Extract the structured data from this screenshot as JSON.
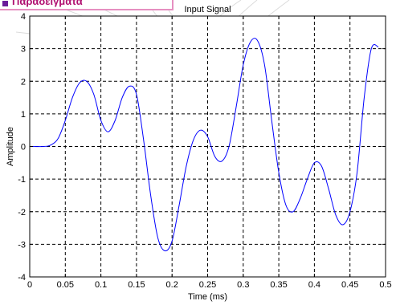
{
  "header": {
    "banner_text": "Παραδείγματα"
  },
  "colors": {
    "banner_text": "#b01070",
    "banner_border": "#e68fc1",
    "bullet": "#6a1b9a",
    "series": "#0000ff",
    "grid": "#000000"
  },
  "chart_data": {
    "type": "line",
    "title": "Input Signal",
    "xlabel": "Time (ms)",
    "ylabel": "Amplitude",
    "xlim": [
      0,
      0.5
    ],
    "ylim": [
      -4,
      4
    ],
    "grid": true,
    "grid_style": "dashed",
    "xticks": [
      0,
      0.05,
      0.1,
      0.15,
      0.2,
      0.25,
      0.3,
      0.35,
      0.4,
      0.45,
      0.5
    ],
    "xtick_labels": [
      "0",
      "0.05",
      "0.1",
      "0.15",
      "0.2",
      "0.25",
      "0.3",
      "0.35",
      "0.4",
      "0.45",
      "0.5"
    ],
    "yticks": [
      -4,
      -3,
      -2,
      -1,
      0,
      1,
      2,
      3,
      4
    ],
    "ytick_labels": [
      "-4",
      "-3",
      "-2",
      "-1",
      "0",
      "1",
      "2",
      "3",
      "4"
    ],
    "series": [
      {
        "x": [
          0,
          0.02,
          0.03,
          0.04,
          0.05,
          0.06,
          0.07,
          0.08,
          0.09,
          0.1,
          0.11,
          0.12,
          0.13,
          0.14,
          0.15,
          0.16,
          0.17,
          0.18,
          0.19,
          0.2,
          0.21,
          0.22,
          0.23,
          0.24,
          0.25,
          0.26,
          0.27,
          0.28,
          0.29,
          0.3,
          0.31,
          0.32,
          0.33,
          0.34,
          0.35,
          0.36,
          0.37,
          0.38,
          0.39,
          0.4,
          0.41,
          0.42,
          0.43,
          0.44,
          0.45,
          0.46,
          0.47,
          0.48,
          0.49
        ],
        "y": [
          0,
          0,
          0.05,
          0.25,
          0.8,
          1.5,
          1.95,
          2.0,
          1.6,
          0.8,
          0.45,
          0.8,
          1.5,
          1.85,
          1.6,
          0.2,
          -1.5,
          -2.8,
          -3.2,
          -2.9,
          -1.8,
          -0.6,
          0.2,
          0.5,
          0.3,
          -0.3,
          -0.45,
          0.0,
          1.2,
          2.5,
          3.2,
          3.25,
          2.5,
          0.8,
          -0.8,
          -1.8,
          -2.0,
          -1.6,
          -1.0,
          -0.5,
          -0.6,
          -1.3,
          -2.1,
          -2.4,
          -2.0,
          -0.8,
          1.5,
          3.0,
          3.05
        ]
      }
    ]
  }
}
